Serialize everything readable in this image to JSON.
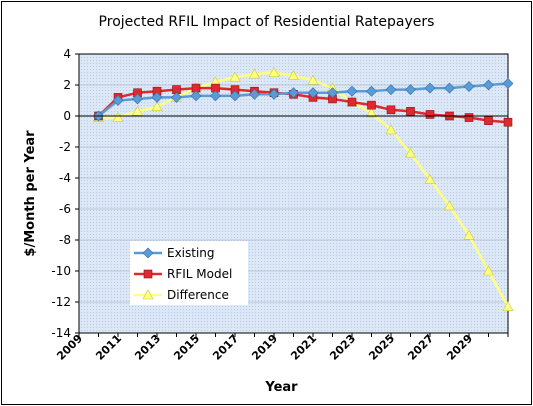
{
  "chart_data": {
    "type": "line",
    "title": "Projected RFIL Impact of Residential Ratepayers",
    "xlabel": "Year",
    "ylabel": "$/Month per Year",
    "xlim": [
      2009,
      2031
    ],
    "ylim": [
      -14,
      4
    ],
    "yticks": [
      4,
      2,
      0,
      -2,
      -4,
      -6,
      -8,
      -10,
      -12,
      -14
    ],
    "xticks": [
      "2009",
      "2011",
      "2013",
      "2015",
      "2017",
      "2019",
      "2021",
      "2023",
      "2025",
      "2027",
      "2029"
    ],
    "grid": true,
    "legend_position": "lower-left",
    "x": [
      2010,
      2011,
      2012,
      2013,
      2014,
      2015,
      2016,
      2017,
      2018,
      2019,
      2020,
      2021,
      2022,
      2023,
      2024,
      2025,
      2026,
      2027,
      2028,
      2029,
      2030,
      2031
    ],
    "series": [
      {
        "name": "Existing",
        "color": "#5b9bd5",
        "marker": "diamond",
        "values": [
          0.0,
          1.0,
          1.1,
          1.2,
          1.2,
          1.3,
          1.3,
          1.3,
          1.4,
          1.4,
          1.5,
          1.5,
          1.5,
          1.6,
          1.6,
          1.7,
          1.7,
          1.8,
          1.8,
          1.9,
          2.0,
          2.1
        ]
      },
      {
        "name": "RFIL Model",
        "color": "#e0282e",
        "marker": "square",
        "values": [
          0.0,
          1.2,
          1.5,
          1.6,
          1.7,
          1.8,
          1.8,
          1.7,
          1.6,
          1.5,
          1.4,
          1.2,
          1.1,
          0.9,
          0.7,
          0.4,
          0.3,
          0.1,
          0.0,
          -0.1,
          -0.3,
          -0.4
        ]
      },
      {
        "name": "Difference",
        "color": "#ffff80",
        "marker": "triangle",
        "values": [
          -0.1,
          -0.1,
          0.3,
          0.6,
          1.2,
          1.8,
          2.2,
          2.5,
          2.7,
          2.8,
          2.6,
          2.3,
          1.8,
          0.9,
          0.2,
          -0.9,
          -2.4,
          -4.1,
          -5.8,
          -7.7,
          -10.0,
          -12.3
        ]
      }
    ]
  }
}
